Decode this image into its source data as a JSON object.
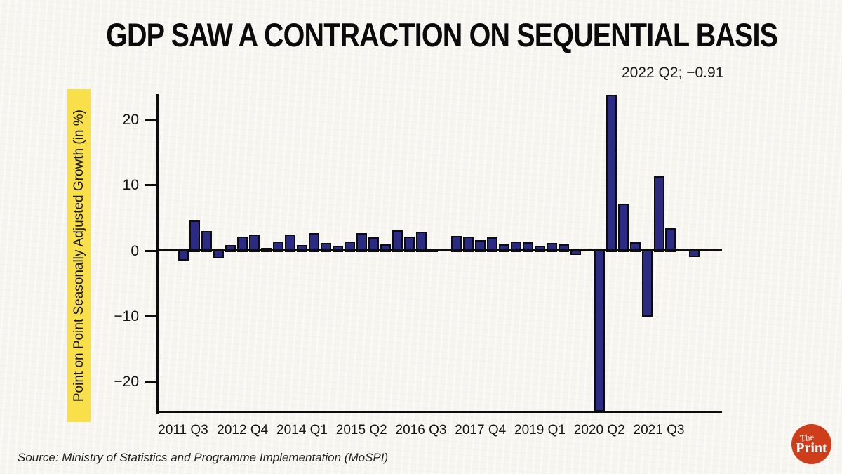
{
  "title": "GDP SAW A CONTRACTION ON SEQUENTIAL BASIS",
  "annotation": "2022 Q2; −0.91",
  "source": "Source: Ministry of Statistics and Programme Implementation (MoSPI)",
  "logo": {
    "the": "The",
    "print": "Print"
  },
  "colors": {
    "background": "#f7f5f0",
    "bar_fill": "#2b2b84",
    "bar_border": "#0d0d0d",
    "axis": "#0d0d0d",
    "ylabel_highlight": "#f9e04b",
    "logo_red": "#cf3e1b",
    "text": "#141414"
  },
  "chart_data": {
    "type": "bar",
    "title": "GDP SAW A CONTRACTION ON SEQUENTIAL BASIS",
    "xlabel": "",
    "ylabel": "Point on Point Seasonally Adjusted Growth (in %)",
    "ylim": [
      -24.5,
      23.9
    ],
    "yticks": [
      20,
      10,
      0,
      -10,
      -20
    ],
    "grid": false,
    "legend": null,
    "x_tick_labels": [
      "2011 Q3",
      "2012 Q4",
      "2014 Q1",
      "2015 Q2",
      "2016 Q3",
      "2017 Q4",
      "2019 Q1",
      "2020 Q2",
      "2021 Q3"
    ],
    "annotation": {
      "text": "2022 Q2; −0.91",
      "quarter": "2022 Q2",
      "value": -0.91
    },
    "categories": [
      "2011 Q3",
      "2011 Q4",
      "2012 Q1",
      "2012 Q2",
      "2012 Q3",
      "2012 Q4",
      "2013 Q1",
      "2013 Q2",
      "2013 Q3",
      "2013 Q4",
      "2014 Q1",
      "2014 Q2",
      "2014 Q3",
      "2014 Q4",
      "2015 Q1",
      "2015 Q2",
      "2015 Q3",
      "2015 Q4",
      "2016 Q1",
      "2016 Q2",
      "2016 Q3",
      "2016 Q4",
      "2017 Q1",
      "2017 Q2",
      "2017 Q3",
      "2017 Q4",
      "2018 Q1",
      "2018 Q2",
      "2018 Q3",
      "2018 Q4",
      "2019 Q1",
      "2019 Q2",
      "2019 Q3",
      "2019 Q4",
      "2020 Q1",
      "2020 Q2",
      "2020 Q3",
      "2020 Q4",
      "2021 Q1",
      "2021 Q2",
      "2021 Q3",
      "2021 Q4",
      "2022 Q1",
      "2022 Q2"
    ],
    "values": [
      -1.4,
      4.6,
      3.0,
      -1.1,
      0.9,
      2.1,
      2.5,
      0.4,
      1.4,
      2.5,
      0.9,
      2.7,
      1.2,
      0.8,
      1.4,
      2.7,
      2.0,
      1.0,
      3.1,
      2.1,
      2.9,
      0.3,
      0.1,
      2.2,
      2.1,
      1.6,
      2.0,
      1.0,
      1.4,
      1.3,
      0.7,
      1.2,
      1.0,
      -0.5,
      0.05,
      -24.4,
      23.8,
      7.2,
      1.3,
      -10.0,
      11.4,
      3.4,
      0.05,
      -0.91
    ]
  }
}
